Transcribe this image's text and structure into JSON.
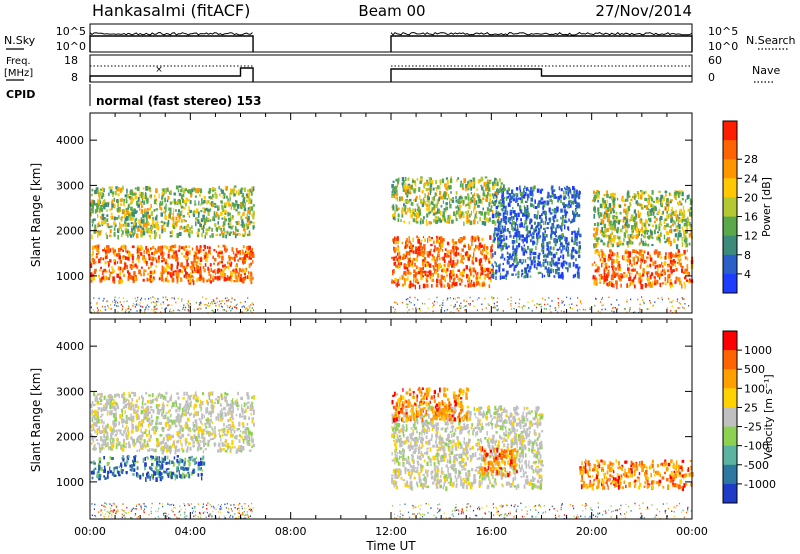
{
  "header": {
    "station": "Hankasalmi (fitACF)",
    "beam": "Beam 00",
    "date": "27/Nov/2014"
  },
  "status_panels": {
    "nsky_label": "N.Sky",
    "nsky_ticks": [
      "10^5",
      "10^0"
    ],
    "nsearch_label": "N.Search",
    "nsearch_ticks": [
      "10^5",
      "10^0"
    ],
    "freq_label_1": "Freq.",
    "freq_label_2": "[MHz]",
    "freq_ticks": [
      "18",
      "8"
    ],
    "nave_label": "Nave",
    "nave_ticks": [
      "60",
      "0"
    ],
    "cpid_label": "CPID",
    "cpid_text": "normal (fast stereo) 153"
  },
  "chart_data": [
    {
      "type": "heatmap",
      "name": "power",
      "ylabel": "Slant Range [km]",
      "xlabel": "Time UT",
      "x_ticks": [
        "00:00",
        "04:00",
        "08:00",
        "12:00",
        "16:00",
        "20:00",
        "00:00"
      ],
      "xlim_hours": [
        0,
        24
      ],
      "y_ticks": [
        1000,
        2000,
        3000,
        4000
      ],
      "ylim": [
        180,
        4600
      ],
      "data_gap_hours": [
        6.5,
        12.0
      ],
      "colorbar": {
        "label": "Power [dB]",
        "ticks": [
          "4",
          "8",
          "12",
          "16",
          "20",
          "24",
          "28"
        ],
        "colors": [
          "#1e3cff",
          "#2a5fc8",
          "#3b8a7a",
          "#5aa84a",
          "#b4c832",
          "#ffc800",
          "#ff9600",
          "#ff6400",
          "#ff1e00"
        ]
      },
      "echo_regions": [
        {
          "t": [
            0.0,
            6.5
          ],
          "range_km": [
            900,
            1700
          ],
          "level": "high"
        },
        {
          "t": [
            0.0,
            6.5
          ],
          "range_km": [
            1900,
            3000
          ],
          "level": "medium"
        },
        {
          "t": [
            12.0,
            16.0
          ],
          "range_km": [
            800,
            1900
          ],
          "level": "high"
        },
        {
          "t": [
            12.0,
            16.5
          ],
          "range_km": [
            2200,
            3200
          ],
          "level": "medium"
        },
        {
          "t": [
            16.0,
            19.5
          ],
          "range_km": [
            1000,
            3000
          ],
          "level": "low"
        },
        {
          "t": [
            20.0,
            24.0
          ],
          "range_km": [
            800,
            1600
          ],
          "level": "high"
        },
        {
          "t": [
            20.0,
            24.0
          ],
          "range_km": [
            1700,
            2900
          ],
          "level": "medium"
        }
      ]
    },
    {
      "type": "heatmap",
      "name": "velocity",
      "ylabel": "Slant Range [km]",
      "xlabel": "Time UT",
      "x_ticks": [
        "00:00",
        "04:00",
        "08:00",
        "12:00",
        "16:00",
        "20:00",
        "00:00"
      ],
      "xlim_hours": [
        0,
        24
      ],
      "y_ticks": [
        1000,
        2000,
        3000,
        4000
      ],
      "ylim": [
        180,
        4600
      ],
      "data_gap_hours": [
        6.5,
        12.0
      ],
      "colorbar": {
        "label": "Velocity [m s⁻¹]",
        "ticks": [
          "1000",
          "500",
          "100",
          "25",
          "-25",
          "-100",
          "-500",
          "-1000"
        ],
        "colors": [
          "#1e3cc8",
          "#2d78a0",
          "#5ab4a0",
          "#8cd250",
          "#c0c0c0",
          "#ffd200",
          "#ffa000",
          "#ff6400",
          "#ff0000"
        ]
      },
      "echo_regions": [
        {
          "t": [
            0.0,
            4.5
          ],
          "range_km": [
            1100,
            1600
          ],
          "velocity": "toward (blue)"
        },
        {
          "t": [
            0.0,
            6.5
          ],
          "range_km": [
            1700,
            3000
          ],
          "velocity": "near zero (grey)"
        },
        {
          "t": [
            12.0,
            18.0
          ],
          "range_km": [
            900,
            2700
          ],
          "velocity": "near zero (grey)"
        },
        {
          "t": [
            15.5,
            17.0
          ],
          "range_km": [
            1200,
            1800
          ],
          "velocity": "away (orange/red)"
        },
        {
          "t": [
            19.5,
            24.0
          ],
          "range_km": [
            900,
            1500
          ],
          "velocity": "away (orange)"
        },
        {
          "t": [
            12.0,
            15.0
          ],
          "range_km": [
            2400,
            3100
          ],
          "velocity": "away (orange/red)"
        }
      ]
    }
  ],
  "footer": {
    "xlabel": "Time UT"
  }
}
